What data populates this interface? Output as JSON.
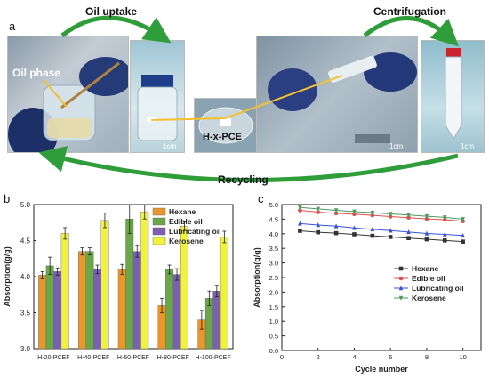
{
  "panel_a": {
    "label": "a",
    "oil_uptake": "Oil uptake",
    "centrifugation": "Centrifugation",
    "recycling": "Recycling",
    "oil_phase": "Oil phase",
    "pce_label": "H-x-PCE",
    "scale_text": "1cm",
    "arrow_color": "#2f9e3a"
  },
  "chart_data": [
    {
      "type": "bar",
      "panel_label": "b",
      "categories": [
        "H-20-PCEF",
        "H-40-PCEF",
        "H-60-PCEF",
        "H-80-PCEF",
        "H-100-PCEF"
      ],
      "series": [
        {
          "name": "Hexane",
          "color": "#e8962e",
          "values": [
            4.02,
            4.35,
            4.1,
            3.6,
            3.4
          ],
          "errors": [
            0.05,
            0.05,
            0.07,
            0.1,
            0.13
          ]
        },
        {
          "name": "Edible oil",
          "color": "#6aa64a",
          "values": [
            4.15,
            4.35,
            4.8,
            4.1,
            3.7
          ],
          "errors": [
            0.12,
            0.05,
            0.2,
            0.06,
            0.1
          ]
        },
        {
          "name": "Lubricating oil",
          "color": "#7b5fb5",
          "values": [
            4.07,
            4.1,
            4.35,
            4.03,
            3.8
          ],
          "errors": [
            0.05,
            0.06,
            0.08,
            0.08,
            0.08
          ]
        },
        {
          "name": "Kerosene",
          "color": "#f2f23a",
          "values": [
            4.6,
            4.78,
            4.9,
            4.7,
            4.55
          ],
          "errors": [
            0.08,
            0.1,
            0.1,
            0.06,
            0.08
          ]
        }
      ],
      "xlabel": "",
      "ylabel": "Absorption(g/g)",
      "ylim": [
        3.0,
        5.0
      ],
      "yticks": [
        "3.0",
        "3.5",
        "4.0",
        "4.5",
        "5.0"
      ],
      "legend": "top-right",
      "grid": false
    },
    {
      "type": "line",
      "panel_label": "c",
      "x": [
        1,
        2,
        3,
        4,
        5,
        6,
        7,
        8,
        9,
        10
      ],
      "series": [
        {
          "name": "Hexane",
          "color": "#333333",
          "marker": "square",
          "values": [
            4.1,
            4.05,
            4.02,
            3.98,
            3.93,
            3.89,
            3.85,
            3.81,
            3.77,
            3.73
          ]
        },
        {
          "name": "Edible oil",
          "color": "#d9534f",
          "marker": "circle",
          "values": [
            4.8,
            4.74,
            4.7,
            4.67,
            4.63,
            4.59,
            4.55,
            4.51,
            4.48,
            4.43
          ]
        },
        {
          "name": "Lubricating oil",
          "color": "#3553d9",
          "marker": "triangle-up",
          "values": [
            4.35,
            4.3,
            4.26,
            4.2,
            4.15,
            4.11,
            4.06,
            4.01,
            3.98,
            3.94
          ]
        },
        {
          "name": "Kerosene",
          "color": "#4e9a5e",
          "marker": "triangle-down",
          "values": [
            4.9,
            4.85,
            4.8,
            4.76,
            4.72,
            4.68,
            4.64,
            4.6,
            4.56,
            4.5
          ]
        }
      ],
      "xlabel": "Cycle number",
      "ylabel": "Absorption(g/g)",
      "xlim": [
        0,
        11
      ],
      "ylim": [
        0,
        5
      ],
      "xticks": [
        "0",
        "2",
        "4",
        "6",
        "8",
        "10"
      ],
      "yticks": [
        "0.0",
        "0.5",
        "1.0",
        "1.5",
        "2.0",
        "2.5",
        "3.0",
        "3.5",
        "4.0",
        "4.5",
        "5.0"
      ],
      "legend": "right",
      "grid": false
    }
  ]
}
